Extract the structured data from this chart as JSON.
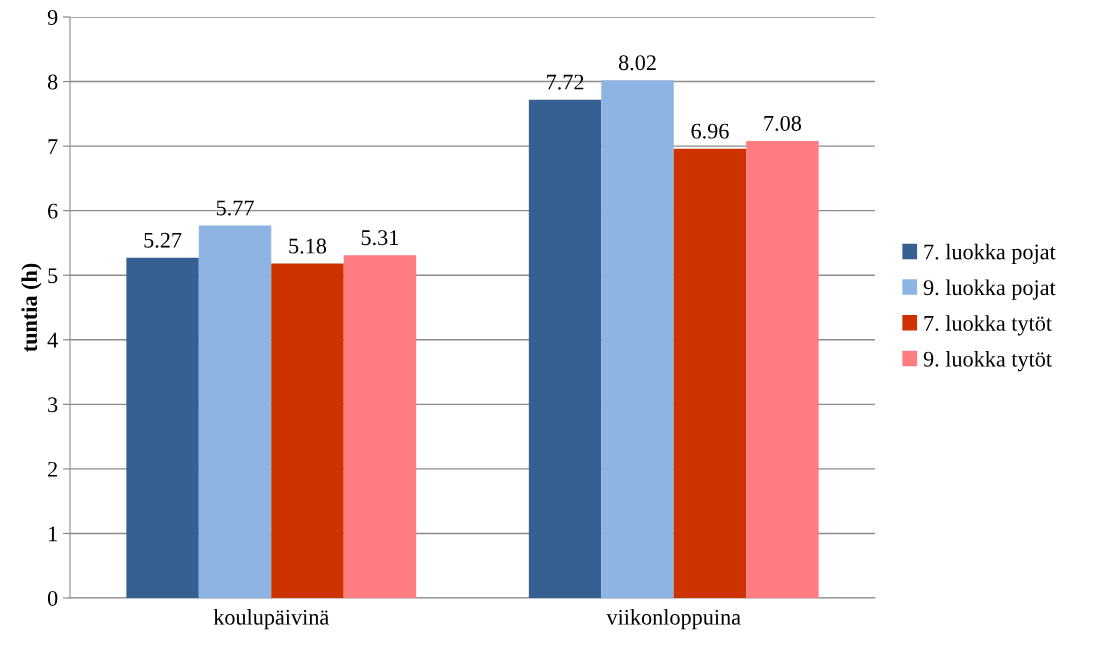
{
  "chart_data": {
    "type": "bar",
    "ylabel": "tuntia (h)",
    "categories": [
      "koulupäivinä",
      "viikonloppuina"
    ],
    "series": [
      {
        "name": "7. luokka pojat",
        "color": "#376092",
        "values": [
          5.27,
          7.72
        ]
      },
      {
        "name": "9. luokka pojat",
        "color": "#8eb4e3",
        "values": [
          5.77,
          8.02
        ]
      },
      {
        "name": "7. luokka tytöt",
        "color": "#cc3300",
        "values": [
          5.18,
          6.96
        ]
      },
      {
        "name": "9. luokka tytöt",
        "color": "#ff7c80",
        "values": [
          5.31,
          7.08
        ]
      }
    ],
    "ylim": [
      0,
      9
    ],
    "yticks": [
      0,
      1,
      2,
      3,
      4,
      5,
      6,
      7,
      8,
      9
    ],
    "grid": "y",
    "legend": "right",
    "data_labels": true
  }
}
